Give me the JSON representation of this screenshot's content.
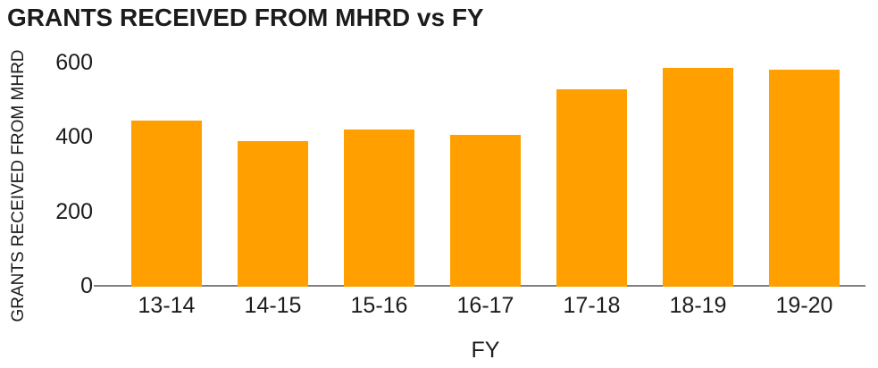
{
  "chart_data": {
    "type": "bar",
    "title": "GRANTS RECEIVED FROM MHRD vs FY",
    "xlabel": "FY",
    "ylabel": "GRANTS RECEIVED FROM MHRD",
    "categories": [
      "13-14",
      "14-15",
      "15-16",
      "16-17",
      "17-18",
      "18-19",
      "19-20"
    ],
    "values": [
      445,
      390,
      420,
      405,
      527,
      585,
      580
    ],
    "ylim": [
      0,
      600
    ],
    "yticks": [
      0,
      200,
      400,
      600
    ],
    "grid": false,
    "legend": false,
    "bar_color": "#FFA000",
    "axis_line_color": "#808080",
    "text_color": "#1c1c1c"
  }
}
